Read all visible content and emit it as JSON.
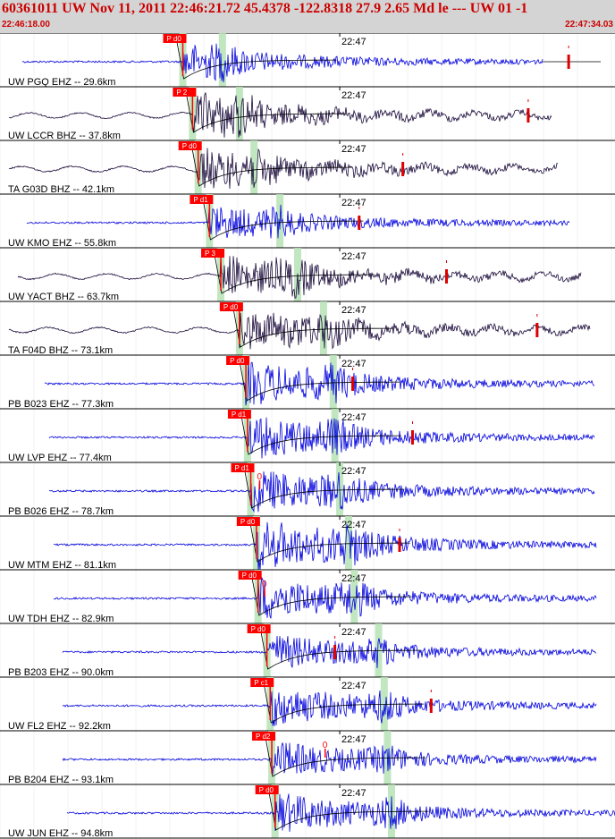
{
  "chart_data": {
    "type": "line",
    "title": "60361011 UW Nov 11, 2011 22:46:21.72    45.4378 -122.8318 27.9 2.65 Md le --- UW 01   -1",
    "time_start": "22:46:18.00",
    "time_end": "22:47:34.03",
    "minute_label": "22:47",
    "grid": true,
    "traces": [
      {
        "label": "UW PGQ EHZ -- 29.6km",
        "pick": "P d0",
        "color": "#0000dd",
        "amp": 0.8,
        "wave_start": 25,
        "wave_end": 607,
        "p_time": 22.6,
        "s_time": 27.5,
        "end_time": 70.3
      },
      {
        "label": "UW LCCR BHZ -- 37.8km",
        "pick": "P 2",
        "color": "#1a0a3a",
        "amp": 1.0,
        "wave_start": 10,
        "wave_end": 617,
        "p_time": 23.8,
        "s_time": 29.6,
        "end_time": 65.3
      },
      {
        "label": "TA G03D BHZ -- 42.1km",
        "pick": "P d0",
        "color": "#1a0a3a",
        "amp": 1.0,
        "wave_start": 10,
        "wave_end": 624,
        "p_time": 24.5,
        "s_time": 31.4,
        "end_time": 49.8
      },
      {
        "label": "UW KMO EHZ -- 55.8km",
        "pick": "P d1",
        "color": "#0000dd",
        "amp": 0.8,
        "wave_start": 30,
        "wave_end": 637,
        "p_time": 25.9,
        "s_time": 34.6,
        "end_time": 44.4
      },
      {
        "label": "UW YACT BHZ -- 63.7km",
        "pick": "P 3",
        "color": "#1a0a3a",
        "amp": 1.0,
        "wave_start": 20,
        "wave_end": 650,
        "p_time": 27.3,
        "s_time": 36.8,
        "end_time": 55.2
      },
      {
        "label": "TA F04D BHZ -- 73.1km",
        "pick": "P d0",
        "color": "#1a0a3a",
        "amp": 1.0,
        "wave_start": 10,
        "wave_end": 660,
        "p_time": 29.6,
        "s_time": 40.0,
        "end_time": 66.4
      },
      {
        "label": "PB B023 EHZ -- 77.3km",
        "pick": "P d0",
        "color": "#0000dd",
        "amp": 1.1,
        "wave_start": 50,
        "wave_end": 665,
        "p_time": 30.4,
        "s_time": 41.2,
        "end_time": 43.6
      },
      {
        "label": "UW LVP EHZ -- 77.4km",
        "pick": "P d1",
        "color": "#0000dd",
        "amp": 1.1,
        "wave_start": 55,
        "wave_end": 665,
        "p_time": 30.6,
        "s_time": 41.4,
        "end_time": 51.0
      },
      {
        "label": "PB B026 EHZ -- 78.7km",
        "pick": "P d1",
        "color": "#0000dd",
        "amp": 1.1,
        "wave_start": 55,
        "wave_end": 665,
        "p_time": 31.0,
        "s_time": 42.0,
        "end_time": 0
      },
      {
        "label": "UW MTM EHZ -- 81.1km",
        "pick": "P d0",
        "color": "#0000dd",
        "amp": 1.3,
        "wave_start": 60,
        "wave_end": 667,
        "p_time": 31.7,
        "s_time": 43.1,
        "end_time": 49.4
      },
      {
        "label": "UW TDH EHZ -- 82.9km",
        "pick": "P d0",
        "color": "#0000dd",
        "amp": 1.1,
        "wave_start": 60,
        "wave_end": 667,
        "p_time": 31.9,
        "s_time": 43.8,
        "end_time": 0
      },
      {
        "label": "PB B203 EHZ -- 90.0km",
        "pick": "P d0",
        "color": "#0000dd",
        "amp": 0.9,
        "wave_start": 70,
        "wave_end": 667,
        "p_time": 33.0,
        "s_time": 46.8,
        "end_time": 41.4
      },
      {
        "label": "UW FL2 EHZ -- 92.2km",
        "pick": "P c1",
        "color": "#0000dd",
        "amp": 1.0,
        "wave_start": 70,
        "wave_end": 667,
        "p_time": 33.4,
        "s_time": 47.5,
        "end_time": 53.3
      },
      {
        "label": "PB B204 EHZ -- 93.1km",
        "pick": "P d2",
        "color": "#0000dd",
        "amp": 0.9,
        "wave_start": 70,
        "wave_end": 667,
        "p_time": 33.6,
        "s_time": 47.9,
        "end_time": 0
      },
      {
        "label": "UW JUN EHZ -- 94.8km",
        "pick": "P d0",
        "color": "#0000dd",
        "amp": 1.0,
        "wave_start": 75,
        "wave_end": 688,
        "p_time": 34.0,
        "s_time": 48.4,
        "end_time": 0
      }
    ],
    "pick_markers": [
      {
        "trace": 8,
        "time": 32.1,
        "text": "0"
      },
      {
        "trace": 10,
        "time": 32.7,
        "text": "0"
      },
      {
        "trace": 13,
        "time": 40.2,
        "text": "0"
      }
    ]
  }
}
